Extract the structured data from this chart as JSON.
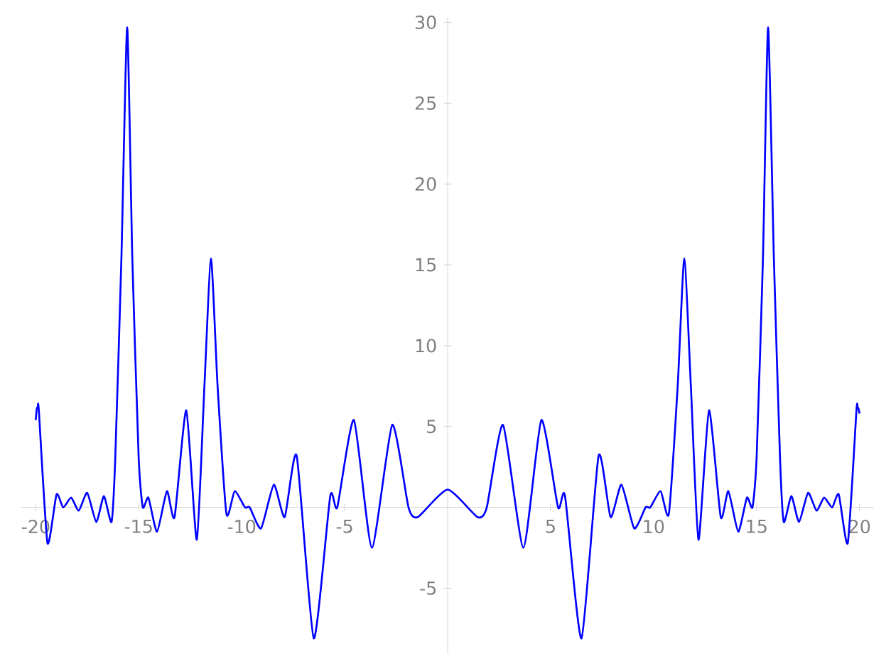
{
  "chart_data": {
    "type": "line",
    "color": "#0000ff",
    "line_style": "solid",
    "x": [
      -20,
      -19.95,
      -19.9,
      -19.85,
      -19.43,
      -18.99,
      -18.67,
      -18.28,
      -17.91,
      -17.5,
      -17.06,
      -16.69,
      -16.32,
      -16.14,
      -15.84,
      -15.56,
      -15.31,
      -15.0,
      -14.8,
      -14.53,
      -14.11,
      -13.63,
      -13.26,
      -12.69,
      -12.18,
      -11.81,
      -11.49,
      -11.17,
      -10.74,
      -10.34,
      -9.84,
      -9.61,
      -9.06,
      -8.44,
      -7.91,
      -7.33,
      -6.5,
      -5.7,
      -5.36,
      -4.55,
      -3.68,
      -2.69,
      -1.9,
      -1.45,
      0,
      1.45,
      1.9,
      2.69,
      3.68,
      4.55,
      5.36,
      5.7,
      6.5,
      7.33,
      7.91,
      8.44,
      9.06,
      9.61,
      9.84,
      10.34,
      10.74,
      11.17,
      11.49,
      11.81,
      12.18,
      12.69,
      13.26,
      13.63,
      14.11,
      14.53,
      14.8,
      15.0,
      15.31,
      15.56,
      15.84,
      16.14,
      16.32,
      16.69,
      17.06,
      17.5,
      17.91,
      18.28,
      18.67,
      18.99,
      19.43,
      19.85,
      19.9,
      19.95,
      20
    ],
    "values": [
      5.4,
      6.1,
      6.2,
      6,
      -2.2,
      0.8,
      0,
      0.6,
      -0.2,
      0.9,
      -0.9,
      0.7,
      -0.9,
      3,
      15.4,
      29.7,
      15.4,
      3,
      0,
      0.6,
      -1.5,
      1,
      -0.6,
      6,
      -2,
      7.5,
      15.4,
      7.5,
      -0.4,
      1,
      0,
      0,
      -1.3,
      1.4,
      -0.6,
      3.2,
      -8.1,
      0.7,
      0,
      5.4,
      -2.5,
      5.1,
      0,
      -0.6,
      1.1,
      -0.6,
      0,
      5.1,
      -2.5,
      5.4,
      0,
      0.7,
      -8.1,
      3.2,
      -0.6,
      1.4,
      -1.3,
      0,
      0,
      1,
      -0.4,
      7.5,
      15.4,
      7.5,
      -2,
      6,
      -0.6,
      1,
      -1.5,
      0.6,
      0,
      3,
      15.4,
      29.7,
      15.4,
      3,
      -0.9,
      0.7,
      -0.9,
      0.9,
      -0.2,
      0.6,
      0,
      0.8,
      -2.2,
      6,
      6.2,
      6.1,
      5.8
    ],
    "xlim": [
      -20.7,
      20.7
    ],
    "ylim": [
      -9.05,
      30.3
    ],
    "xticks": [
      -20,
      -15,
      -10,
      -5,
      5,
      10,
      15,
      20
    ],
    "yticks": [
      -5,
      5,
      10,
      15,
      20,
      25,
      30
    ]
  }
}
